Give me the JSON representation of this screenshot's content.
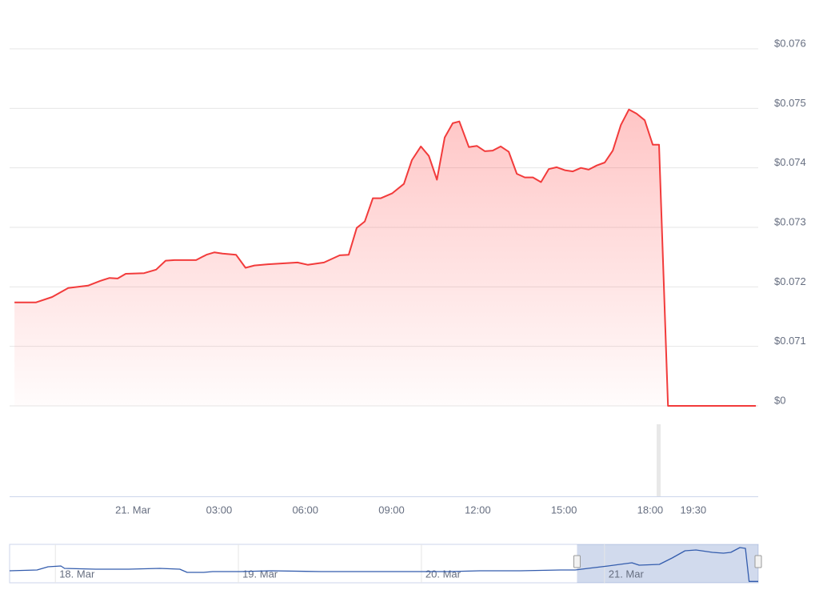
{
  "chart_data": [
    {
      "type": "line",
      "color": "#f23b3b",
      "area": true,
      "grid": true,
      "x": [
        -4.12,
        -3.37,
        -2.81,
        -2.25,
        -1.56,
        -1.14,
        -0.81,
        -0.53,
        -0.25,
        0.39,
        0.81,
        1.14,
        1.45,
        2.2,
        2.56,
        2.84,
        3.12,
        3.59,
        3.92,
        4.23,
        4.7,
        5.73,
        6.09,
        6.65,
        7.2,
        7.51,
        7.79,
        8.07,
        8.35,
        8.63,
        9.02,
        9.43,
        9.71,
        10.02,
        10.3,
        10.58,
        10.85,
        11.13,
        11.36,
        11.69,
        11.97,
        12.25,
        12.52,
        12.8,
        13.08,
        13.36,
        13.64,
        13.92,
        14.2,
        14.47,
        14.75,
        15.03,
        15.31,
        15.59,
        15.86,
        16.14,
        16.42,
        16.7,
        16.98,
        17.26,
        17.53,
        17.81,
        18.09,
        18.31,
        18.62,
        21.68
      ],
      "values": [
        0.07174,
        0.07174,
        0.07183,
        0.07198,
        0.07202,
        0.0721,
        0.07215,
        0.07214,
        0.07222,
        0.07223,
        0.07229,
        0.07244,
        0.07245,
        0.07245,
        0.07254,
        0.07258,
        0.07256,
        0.07254,
        0.07232,
        0.07236,
        0.07238,
        0.07241,
        0.07237,
        0.07241,
        0.07253,
        0.07254,
        0.07299,
        0.0731,
        0.07349,
        0.07349,
        0.07357,
        0.07373,
        0.07413,
        0.07436,
        0.0742,
        0.0738,
        0.07451,
        0.07475,
        0.07478,
        0.07435,
        0.07437,
        0.07428,
        0.07429,
        0.07436,
        0.07427,
        0.0739,
        0.07384,
        0.07384,
        0.07376,
        0.07398,
        0.07401,
        0.07396,
        0.07394,
        0.074,
        0.07397,
        0.07404,
        0.07409,
        0.07429,
        0.07472,
        0.07498,
        0.07491,
        0.0748,
        0.07439,
        0.07439,
        0.07,
        0.07
      ],
      "xlim": [
        -4.29,
        21.76
      ],
      "xticks": [
        {
          "value": 0,
          "label": "21. Mar"
        },
        {
          "value": 3,
          "label": "03:00"
        },
        {
          "value": 6,
          "label": "06:00"
        },
        {
          "value": 9,
          "label": "09:00"
        },
        {
          "value": 12,
          "label": "12:00"
        },
        {
          "value": 15,
          "label": "15:00"
        },
        {
          "value": 18,
          "label": "18:00"
        },
        {
          "value": 19.5,
          "label": "19:30"
        }
      ],
      "ylim": [
        0.07,
        0.076
      ],
      "yticks": [
        {
          "value": 0.07,
          "label": "$0"
        },
        {
          "value": 0.071,
          "label": "$0.071"
        },
        {
          "value": 0.072,
          "label": "$0.072"
        },
        {
          "value": 0.073,
          "label": "$0.073"
        },
        {
          "value": 0.074,
          "label": "$0.074"
        },
        {
          "value": 0.075,
          "label": "$0.075"
        },
        {
          "value": 0.076,
          "label": "$0.076"
        }
      ]
    },
    {
      "type": "line",
      "color": "#335cad",
      "area": false,
      "grid": false,
      "x": [
        -0.25,
        -0.1,
        -0.04,
        0.03,
        0.05,
        0.22,
        0.4,
        0.57,
        0.68,
        0.72,
        0.81,
        0.86,
        1.01,
        1.18,
        1.45,
        1.79,
        2.01,
        2.15,
        2.32,
        2.54,
        2.76,
        2.84,
        2.91,
        3.02,
        3.15,
        3.19,
        3.3,
        3.37,
        3.44,
        3.5,
        3.59,
        3.65,
        3.69,
        3.74,
        3.77,
        3.79,
        3.84
      ],
      "values": [
        0.07156,
        0.07168,
        0.07215,
        0.07227,
        0.07191,
        0.0718,
        0.0718,
        0.07191,
        0.0718,
        0.07133,
        0.07133,
        0.07144,
        0.07144,
        0.07156,
        0.07144,
        0.07144,
        0.07144,
        0.07144,
        0.07156,
        0.07156,
        0.07168,
        0.07168,
        0.07191,
        0.07227,
        0.07273,
        0.07238,
        0.0725,
        0.07344,
        0.0745,
        0.07461,
        0.07426,
        0.07414,
        0.07426,
        0.07497,
        0.07485,
        0.07,
        0.07
      ],
      "xlim": [
        -0.25,
        3.84
      ],
      "xticks": [
        {
          "value": 0,
          "label": "18. Mar"
        },
        {
          "value": 1,
          "label": "19. Mar"
        },
        {
          "value": 2,
          "label": "20. Mar"
        },
        {
          "value": 3,
          "label": "21. Mar"
        }
      ],
      "ylim": [
        0.0698,
        0.0752
      ],
      "selection": [
        2.85,
        3.84
      ]
    }
  ]
}
